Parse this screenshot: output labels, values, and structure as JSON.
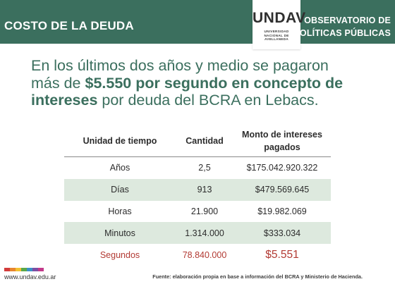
{
  "header": {
    "left_title": "COSTO DE LA DEUDA",
    "logo_word": "UNDAV",
    "logo_lines": [
      "UNIVERSIDAD",
      "NACIONAL DE",
      "AVELLANEDA"
    ],
    "right_line1": "OBSERVATORIO DE",
    "right_line2": "POLÍTICAS PÚBLICAS"
  },
  "headline": {
    "line1": "En los últimos dos años y medio se pagaron",
    "line2_pre": "más de ",
    "line2_bold": "$5.550 por segundo en concepto de",
    "line3_bold": "intereses",
    "line3_post": " por deuda del BCRA en Lebacs."
  },
  "table": {
    "headers": [
      "Unidad de tiempo",
      "Cantidad",
      "Monto de intereses pagados"
    ],
    "rows": [
      [
        "Años",
        "2,5",
        "$175.042.920.322"
      ],
      [
        "Días",
        "913",
        "$479.569.645"
      ],
      [
        "Horas",
        "21.900",
        "$19.982.069"
      ],
      [
        "Minutos",
        "1.314.000",
        "$333.034"
      ],
      [
        "Segundos",
        "78.840.000",
        "$5.551"
      ]
    ]
  },
  "footer": {
    "site": "www.undav.edu.ar",
    "source": "Fuente: elaboración propia en base a información del BCRA y Ministerio de Hacienda."
  },
  "colors": {
    "brand_green": "#3b6f5e",
    "row_shade": "#dde9de",
    "highlight_red": "#b23a33",
    "footer_dots": [
      "#d23b3b",
      "#e8862e",
      "#f2c232",
      "#5aa84a",
      "#3b8fc7",
      "#7b4fa3",
      "#c2398a"
    ]
  }
}
